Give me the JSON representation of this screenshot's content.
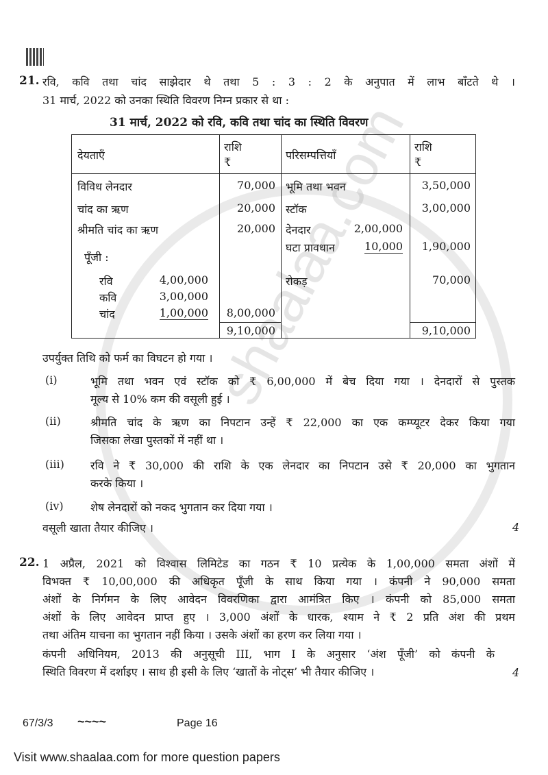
{
  "watermark": "shaalaa.com",
  "q21": {
    "number": "21.",
    "intro_line1": "रवि, कवि तथा चांद साझेदार थे तथा 5 : 3 : 2 के अनुपात में लाभ बाँटते थे ।",
    "intro_line2": "31 मार्च, 2022 को उनका स्थिति विवरण निम्न प्रकार से था :",
    "table_title": "31 मार्च, 2022 को रवि, कवि तथा चांद का स्थिति विवरण",
    "table": {
      "headers": {
        "liabilities": "देयताएँ",
        "amount": "राशि",
        "currency": "₹",
        "assets": "परिसम्पत्तियाँ"
      },
      "liabilities": [
        {
          "label": "विविध लेनदार",
          "amount": "70,000"
        },
        {
          "label": "चांद का ऋण",
          "amount": "20,000"
        },
        {
          "label": "श्रीमति चांद का ऋण",
          "amount": "20,000"
        }
      ],
      "capital_label": "पूँजी :",
      "capital": [
        {
          "name": "रवि",
          "amount": "4,00,000"
        },
        {
          "name": "कवि",
          "amount": "3,00,000"
        },
        {
          "name": "चांद",
          "amount": "1,00,000"
        }
      ],
      "capital_total": "8,00,000",
      "assets": [
        {
          "label": "भूमि तथा भवन",
          "amount": "3,50,000"
        },
        {
          "label": "स्टॉक",
          "amount": "3,00,000"
        },
        {
          "label": "देनदार",
          "sub": "2,00,000"
        },
        {
          "label": "घटा प्रावधान",
          "sub": "10,000",
          "amount": "1,90,000"
        },
        {
          "label": "रोकड़",
          "amount": "70,000"
        }
      ],
      "total_liabilities": "9,10,000",
      "total_assets": "9,10,000"
    },
    "dissolved": "उपर्युक्त तिथि को फर्म का विघटन हो गया ।",
    "items": [
      {
        "num": "(i)",
        "l1": "भूमि तथा भवन एवं स्टॉक को ₹ 6,00,000 में बेच दिया गया । देनदारों से पुस्तक",
        "l2": "मूल्य से 10% कम की वसूली हुई ।"
      },
      {
        "num": "(ii)",
        "l1": "श्रीमति चांद के ऋण का निपटान उन्हें ₹ 22,000 का एक कम्प्यूटर देकर किया गया",
        "l2": "जिसका लेखा पुस्तकों में नहीं था ।"
      },
      {
        "num": "(iii)",
        "l1": "रवि ने ₹ 30,000 की राशि के एक लेनदार का निपटान उसे ₹ 20,000 का भुगतान",
        "l2": "करके किया ।"
      },
      {
        "num": "(iv)",
        "l1": "शेष लेनदारों को नकद भुगतान कर दिया गया ।",
        "l2": ""
      }
    ],
    "task": "वसूली खाता तैयार कीजिए ।",
    "marks": "4"
  },
  "q22": {
    "number": "22.",
    "lines": [
      "1 अप्रैल, 2021 को विश्वास लिमिटेड का गठन ₹ 10 प्रत्येक के 1,00,000 समता अंशों में",
      "विभक्त ₹ 10,00,000 की अधिकृत पूँजी के साथ किया गया । कंपनी ने 90,000 समता",
      "अंशों के निर्गमन के लिए आवेदन विवरणिका द्वारा आमंत्रित किए । कंपनी को 85,000 समता",
      "अंशों के लिए आवेदन प्राप्त हुए । 3,000 अंशों के धारक, श्याम ने ₹ 2 प्रति अंश की प्रथम",
      "तथा अंतिम याचना का भुगतान नहीं किया । उसके अंशों का हरण कर लिया गया ।",
      "कंपनी अधिनियम, 2013 की अनुसूची III, भाग I के अनुसार ‘अंश पूँजी’ को कंपनी के",
      "स्थिति विवरण में दर्शाइए । साथ ही इसी के लिए ‘खातों के नोट्स’ भी तैयार कीजिए ।"
    ],
    "marks": "4"
  },
  "footer": {
    "code": "67/3/3",
    "ornament": "~~~~",
    "page": "Page 16",
    "visit": "Visit www.shaalaa.com for more question papers"
  }
}
